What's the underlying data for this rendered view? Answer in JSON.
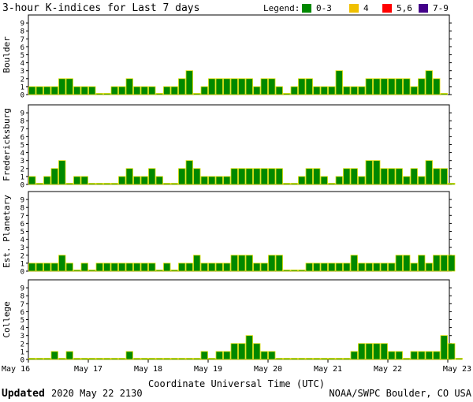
{
  "chart_data": {
    "type": "bar",
    "title": "3-hour K-indices for Last 7 days",
    "legend": {
      "label": "Legend:",
      "placement": "top-right",
      "items": [
        {
          "label": "0-3",
          "color": "#008800"
        },
        {
          "label": "4",
          "color": "#f0c000"
        },
        {
          "label": "5,6",
          "color": "#ff0000"
        },
        {
          "label": "7-9",
          "color": "#44008a"
        }
      ]
    },
    "bar_color": "#008800",
    "bar_edge_color": "#dddd00",
    "y_ticks": [
      "0",
      "1",
      "2",
      "3",
      "4",
      "5",
      "6",
      "7",
      "8",
      "9"
    ],
    "ylim": [
      0,
      9
    ],
    "x_ticks": [
      "May 16",
      "May 17",
      "May 18",
      "May 19",
      "May 20",
      "May 21",
      "May 22",
      "May 23"
    ],
    "xlabel": "Coordinate Universal Time (UTC)",
    "grid": false,
    "series": [
      {
        "name": "Boulder",
        "values": [
          1,
          1,
          1,
          1,
          2,
          2,
          1,
          1,
          1,
          0,
          0,
          1,
          1,
          2,
          1,
          1,
          1,
          0,
          1,
          1,
          2,
          3,
          0,
          1,
          2,
          2,
          2,
          2,
          2,
          2,
          1,
          2,
          2,
          1,
          0,
          1,
          2,
          2,
          1,
          1,
          1,
          3,
          1,
          1,
          1,
          2,
          2,
          2,
          2,
          2,
          2,
          1,
          2,
          3,
          2,
          0
        ]
      },
      {
        "name": "Fredericksburg",
        "values": [
          1,
          0,
          1,
          2,
          3,
          0,
          1,
          1,
          0,
          0,
          0,
          0,
          1,
          2,
          1,
          1,
          2,
          1,
          0,
          0,
          2,
          3,
          2,
          1,
          1,
          1,
          1,
          2,
          2,
          2,
          2,
          2,
          2,
          2,
          0,
          0,
          1,
          2,
          2,
          1,
          0,
          1,
          2,
          2,
          1,
          3,
          3,
          2,
          2,
          2,
          1,
          2,
          1,
          3,
          2,
          2,
          0
        ]
      },
      {
        "name": "Est. Planetary",
        "values": [
          1,
          1,
          1,
          1,
          2,
          1,
          0,
          1,
          0,
          1,
          1,
          1,
          1,
          1,
          1,
          1,
          1,
          0,
          1,
          0,
          1,
          1,
          2,
          1,
          1,
          1,
          1,
          2,
          2,
          2,
          1,
          1,
          2,
          2,
          0,
          0,
          0,
          1,
          1,
          1,
          1,
          1,
          1,
          2,
          1,
          1,
          1,
          1,
          1,
          2,
          2,
          1,
          2,
          1,
          2,
          2,
          2
        ]
      },
      {
        "name": "College",
        "values": [
          0,
          0,
          0,
          1,
          0,
          1,
          0,
          0,
          0,
          0,
          0,
          0,
          0,
          1,
          0,
          0,
          0,
          0,
          0,
          0,
          0,
          0,
          0,
          1,
          0,
          1,
          1,
          2,
          2,
          3,
          2,
          1,
          1,
          0,
          0,
          0,
          0,
          0,
          0,
          0,
          0,
          0,
          0,
          1,
          2,
          2,
          2,
          2,
          1,
          1,
          0,
          1,
          1,
          1,
          1,
          3,
          2,
          0
        ]
      }
    ]
  },
  "footer": {
    "updated_label": "Updated",
    "updated_value": "2020 May 22 2130",
    "source": "NOAA/SWPC Boulder, CO USA"
  }
}
